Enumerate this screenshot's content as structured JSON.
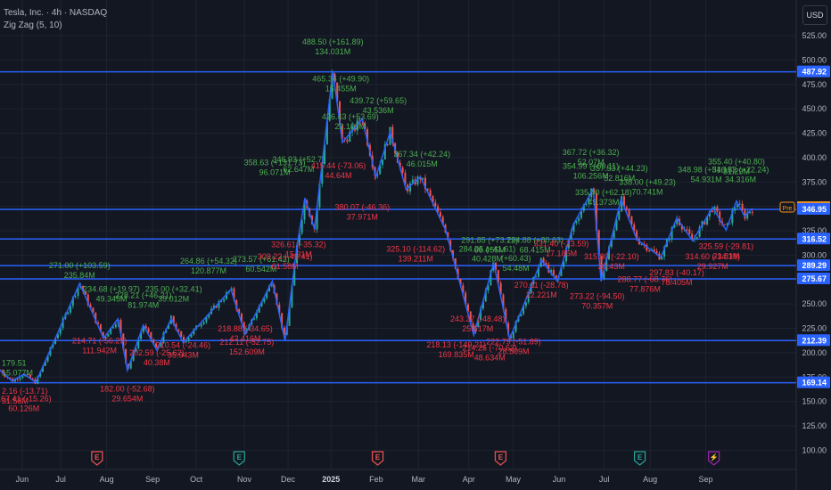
{
  "header": {
    "symbol_line": "Tesla, Inc. · 4h · NASDAQ",
    "indicator_line": "Zig Zag (5, 10)",
    "currency_button": "USD"
  },
  "colors": {
    "background": "#131722",
    "grid": "#1f2330",
    "up": "#26a69a",
    "down": "#ef5350",
    "hline": "#2962ff",
    "zigzag": "#2962ff",
    "label_up": "#4caf50",
    "label_down": "#f23645",
    "axis_text": "#b2b5be",
    "price_tag": "#f7931a"
  },
  "chart_data": {
    "type": "candlestick",
    "title": "Tesla, Inc. · 4h · NASDAQ",
    "ylim": [
      92,
      560
    ],
    "y_ticks": [
      100,
      125,
      150,
      175,
      200,
      225,
      250,
      275,
      300,
      325,
      350,
      375,
      400,
      425,
      450,
      475,
      500,
      525
    ],
    "y_tick_labels": [
      "100.00",
      "125.00",
      "150.00",
      "175.00",
      "200.00",
      "225.00",
      "250.00",
      "275.00",
      "300.00",
      "325.00",
      "350.00",
      "375.00",
      "400.00",
      "425.00",
      "450.00",
      "475.00",
      "500.00",
      "525.00"
    ],
    "x_labels": [
      {
        "label": "Jun",
        "t": 0.03
      },
      {
        "label": "Jul",
        "t": 0.082
      },
      {
        "label": "Aug",
        "t": 0.144
      },
      {
        "label": "Sep",
        "t": 0.206
      },
      {
        "label": "Oct",
        "t": 0.265
      },
      {
        "label": "Nov",
        "t": 0.33
      },
      {
        "label": "Dec",
        "t": 0.389
      },
      {
        "label": "2025",
        "t": 0.447
      },
      {
        "label": "Feb",
        "t": 0.508
      },
      {
        "label": "Mar",
        "t": 0.565
      },
      {
        "label": "Apr",
        "t": 0.633
      },
      {
        "label": "May",
        "t": 0.693
      },
      {
        "label": "Jun",
        "t": 0.755
      },
      {
        "label": "Jul",
        "t": 0.816
      },
      {
        "label": "Aug",
        "t": 0.878
      },
      {
        "label": "Sep",
        "t": 0.953
      }
    ],
    "earnings_markers": [
      {
        "t": 0.125,
        "letter": "E",
        "color": "#ef5350"
      },
      {
        "t": 0.317,
        "letter": "E",
        "color": "#26a69a"
      },
      {
        "t": 0.504,
        "letter": "E",
        "color": "#ef5350"
      },
      {
        "t": 0.67,
        "letter": "E",
        "color": "#ef5350"
      },
      {
        "t": 0.858,
        "letter": "E",
        "color": "#26a69a"
      },
      {
        "t": 0.958,
        "letter": "⚡",
        "color": "#9c27b0"
      }
    ],
    "horizontal_levels": [
      487.92,
      346.95,
      316.52,
      289.29,
      275.67,
      212.39,
      169.14
    ],
    "axis_tags": [
      {
        "value": 487.92,
        "label": "487.92",
        "color": "#2962ff"
      },
      {
        "value": 348.76,
        "label": "348.76",
        "color": "#f7931a"
      },
      {
        "value": 347.01,
        "label": "347.01",
        "color": "#2962ff"
      },
      {
        "value": 346.95,
        "label": "346.95",
        "color": "#2962ff"
      },
      {
        "value": 316.52,
        "label": "316.52",
        "color": "#2962ff"
      },
      {
        "value": 289.29,
        "label": "289.29",
        "color": "#2962ff"
      },
      {
        "value": 275.67,
        "label": "275.67",
        "color": "#2962ff"
      },
      {
        "value": 212.39,
        "label": "212.39",
        "color": "#2962ff"
      },
      {
        "value": 169.14,
        "label": "169.14",
        "color": "#2962ff"
      }
    ],
    "price_tag_label": "Pre",
    "zigzag_points": [
      {
        "t": 0.0,
        "v": 182.0
      },
      {
        "t": 0.015,
        "v": 171.0
      },
      {
        "t": 0.03,
        "v": 178.0
      },
      {
        "t": 0.045,
        "v": 169.5
      },
      {
        "t": 0.1,
        "v": 271.0
      },
      {
        "t": 0.13,
        "v": 214.7
      },
      {
        "t": 0.148,
        "v": 234.7
      },
      {
        "t": 0.16,
        "v": 182.0
      },
      {
        "t": 0.18,
        "v": 228.2
      },
      {
        "t": 0.197,
        "v": 202.6
      },
      {
        "t": 0.215,
        "v": 235.0
      },
      {
        "t": 0.23,
        "v": 210.5
      },
      {
        "t": 0.29,
        "v": 264.9
      },
      {
        "t": 0.308,
        "v": 218.8
      },
      {
        "t": 0.342,
        "v": 273.5
      },
      {
        "t": 0.358,
        "v": 212.1
      },
      {
        "t": 0.373,
        "v": 309.2
      },
      {
        "t": 0.383,
        "v": 358.6
      },
      {
        "t": 0.395,
        "v": 326.6
      },
      {
        "t": 0.418,
        "v": 488.5
      },
      {
        "t": 0.43,
        "v": 415.4
      },
      {
        "t": 0.455,
        "v": 439.7
      },
      {
        "t": 0.472,
        "v": 380.1
      },
      {
        "t": 0.49,
        "v": 426.4
      },
      {
        "t": 0.51,
        "v": 367.3
      },
      {
        "t": 0.528,
        "v": 380.1
      },
      {
        "t": 0.56,
        "v": 325.1
      },
      {
        "t": 0.595,
        "v": 218.1
      },
      {
        "t": 0.62,
        "v": 291.9
      },
      {
        "t": 0.64,
        "v": 214.3
      },
      {
        "t": 0.655,
        "v": 243.4
      },
      {
        "t": 0.68,
        "v": 294.9
      },
      {
        "t": 0.7,
        "v": 273.2
      },
      {
        "t": 0.72,
        "v": 331.4
      },
      {
        "t": 0.745,
        "v": 367.7
      },
      {
        "t": 0.755,
        "v": 273.2
      },
      {
        "t": 0.78,
        "v": 357.5
      },
      {
        "t": 0.8,
        "v": 316.0
      },
      {
        "t": 0.83,
        "v": 297.8
      },
      {
        "t": 0.85,
        "v": 338.0
      },
      {
        "t": 0.87,
        "v": 314.6
      },
      {
        "t": 0.895,
        "v": 348.9
      },
      {
        "t": 0.912,
        "v": 325.6
      },
      {
        "t": 0.925,
        "v": 355.4
      },
      {
        "t": 0.935,
        "v": 340.0
      },
      {
        "t": 0.945,
        "v": 348.0
      }
    ],
    "zigzag_labels": [
      {
        "t": 0.0,
        "v": 186.5,
        "lines": [
          "179.51",
          "15.077M"
        ],
        "dir": "up"
      },
      {
        "t": 0.0,
        "v": 158.0,
        "lines": [
          "2.16 (-13.71)",
          "31.58M"
        ],
        "dir": "down"
      },
      {
        "t": 0.03,
        "v": 150.0,
        "lines": [
          "167.41 (-15.26)",
          "60.126M"
        ],
        "dir": "down"
      },
      {
        "t": 0.1,
        "v": 286.5,
        "lines": [
          "271.00 (+103.59)",
          "235.84M"
        ],
        "dir": "up"
      },
      {
        "t": 0.14,
        "v": 262.5,
        "lines": [
          "234.68 (+19.97)",
          "49.345M"
        ],
        "dir": "up"
      },
      {
        "t": 0.125,
        "v": 209.5,
        "lines": [
          "214.71 (-56.29)",
          "111.942M"
        ],
        "dir": "down"
      },
      {
        "t": 0.16,
        "v": 160.0,
        "lines": [
          "182.00 (-52.68)",
          "29.654M"
        ],
        "dir": "down"
      },
      {
        "t": 0.18,
        "v": 256.0,
        "lines": [
          "228.21 (+46.21)",
          "81.974M"
        ],
        "dir": "up"
      },
      {
        "t": 0.218,
        "v": 262.5,
        "lines": [
          "235.00 (+32.41)",
          "39.012M"
        ],
        "dir": "up"
      },
      {
        "t": 0.197,
        "v": 197.0,
        "lines": [
          "202.59 (-25.62)",
          "40.38M"
        ],
        "dir": "down"
      },
      {
        "t": 0.23,
        "v": 205.0,
        "lines": [
          "210.54 (-24.46)",
          "35.943M"
        ],
        "dir": "down"
      },
      {
        "t": 0.262,
        "v": 291.0,
        "lines": [
          "264.86 (+54.32)",
          "120.877M"
        ],
        "dir": "up"
      },
      {
        "t": 0.328,
        "v": 293.0,
        "lines": [
          "273.57 (+61.42)",
          "60.542M"
        ],
        "dir": "up"
      },
      {
        "t": 0.308,
        "v": 222.0,
        "lines": [
          "218.88 (-34.65)",
          "42.416M"
        ],
        "dir": "down"
      },
      {
        "t": 0.31,
        "v": 208.0,
        "lines": [
          "212.11 (-52.75)",
          "152.609M"
        ],
        "dir": "down"
      },
      {
        "t": 0.358,
        "v": 296.0,
        "lines": [
          "309.22 (-49.41)",
          "61.58M"
        ],
        "dir": "down"
      },
      {
        "t": 0.375,
        "v": 308.0,
        "lines": [
          "326.61 (-35.32)",
          "15.31M"
        ],
        "dir": "down"
      },
      {
        "t": 0.345,
        "v": 392.0,
        "lines": [
          "358.63 (+131.73)",
          "96.071M"
        ],
        "dir": "up"
      },
      {
        "t": 0.375,
        "v": 395.5,
        "lines": [
          "346.93 (+52.7)",
          "62.647M"
        ],
        "dir": "up"
      },
      {
        "t": 0.418,
        "v": 516.0,
        "lines": [
          "488.50 (+161.89)",
          "134.031M"
        ],
        "dir": "up"
      },
      {
        "t": 0.428,
        "v": 478.0,
        "lines": [
          "465.34 (+49.90)",
          "15.455M"
        ],
        "dir": "up"
      },
      {
        "t": 0.44,
        "v": 439.0,
        "lines": [
          "426.43 (+53.69)",
          "22.103M"
        ],
        "dir": "up"
      },
      {
        "t": 0.475,
        "v": 455.5,
        "lines": [
          "439.72 (+59.65)",
          "43.536M"
        ],
        "dir": "up"
      },
      {
        "t": 0.425,
        "v": 389.0,
        "lines": [
          "415.44 (-73.06)",
          "44.64M"
        ],
        "dir": "down"
      },
      {
        "t": 0.455,
        "v": 346.5,
        "lines": [
          "380.07 (-46.36)",
          "37.971M"
        ],
        "dir": "down"
      },
      {
        "t": 0.53,
        "v": 401.0,
        "lines": [
          "367.34 (+42.24)",
          "46.015M"
        ],
        "dir": "up"
      },
      {
        "t": 0.522,
        "v": 303.5,
        "lines": [
          "325.10 (-114.62)",
          "139.211M"
        ],
        "dir": "down"
      },
      {
        "t": 0.615,
        "v": 312.5,
        "lines": [
          "291.85 (+73.72)",
          "66.455M"
        ],
        "dir": "up"
      },
      {
        "t": 0.612,
        "v": 303.5,
        "lines": [
          "284.95 (+41.61)",
          "40.428M"
        ],
        "dir": "up"
      },
      {
        "t": 0.672,
        "v": 312.5,
        "lines": [
          "294.88 (+80.63)",
          "68.415M"
        ],
        "dir": "up"
      },
      {
        "t": 0.648,
        "v": 294.0,
        "lines": [
          "(+60.43)",
          "54.48M"
        ],
        "dir": "up"
      },
      {
        "t": 0.6,
        "v": 232.0,
        "lines": [
          "243.37 (-48.48)",
          "25.617M"
        ],
        "dir": "down"
      },
      {
        "t": 0.573,
        "v": 205.5,
        "lines": [
          "218.13 (-149.21)",
          "169.835M"
        ],
        "dir": "down"
      },
      {
        "t": 0.615,
        "v": 202.0,
        "lines": [
          "214.25 (-70.63)",
          "48.634M"
        ],
        "dir": "down"
      },
      {
        "t": 0.645,
        "v": 208.5,
        "lines": [
          "222.79 (-51.89)",
          "28.509M"
        ],
        "dir": "down"
      },
      {
        "t": 0.68,
        "v": 266.5,
        "lines": [
          "270.11 (-28.78)",
          "22.221M"
        ],
        "dir": "down"
      },
      {
        "t": 0.742,
        "v": 388.5,
        "lines": [
          "354.99 (+60.11)",
          "106.256M"
        ],
        "dir": "up"
      },
      {
        "t": 0.742,
        "v": 402.5,
        "lines": [
          "367.72 (+36.32)",
          "52.07M"
        ],
        "dir": "up"
      },
      {
        "t": 0.778,
        "v": 386.0,
        "lines": [
          "357.53 (+44.23)",
          "52.816M"
        ],
        "dir": "up"
      },
      {
        "t": 0.758,
        "v": 361.5,
        "lines": [
          "335.40 (+62.18)",
          "49.373M"
        ],
        "dir": "up"
      },
      {
        "t": 0.705,
        "v": 309.0,
        "lines": [
          "331.40 (-23.59)",
          "17.185M"
        ],
        "dir": "down"
      },
      {
        "t": 0.768,
        "v": 296.0,
        "lines": [
          "315.80 (-22.10)",
          "20.43M"
        ],
        "dir": "down"
      },
      {
        "t": 0.75,
        "v": 255.0,
        "lines": [
          "273.22 (-94.50)",
          "70.357M"
        ],
        "dir": "down"
      },
      {
        "t": 0.81,
        "v": 272.5,
        "lines": [
          "288.77 (-68.76)",
          "77.876M"
        ],
        "dir": "down"
      },
      {
        "t": 0.85,
        "v": 279.5,
        "lines": [
          "297.83 (-40.17)",
          "78.405M"
        ],
        "dir": "down"
      },
      {
        "t": 0.813,
        "v": 372.0,
        "lines": [
          "338.00 (+49.23)",
          "70.741M"
        ],
        "dir": "up"
      },
      {
        "t": 0.887,
        "v": 385.0,
        "lines": [
          "348.98 (+51.15)",
          "54.931M"
        ],
        "dir": "up"
      },
      {
        "t": 0.925,
        "v": 393.0,
        "lines": [
          "355.40 (+40.80)",
          "31.29M"
        ],
        "dir": "up"
      },
      {
        "t": 0.93,
        "v": 385.0,
        "lines": [
          "346.83 (+22.24)",
          "34.316M"
        ],
        "dir": "up"
      },
      {
        "t": 0.895,
        "v": 296.0,
        "lines": [
          "314.60 (-34.38)",
          "29.927M"
        ],
        "dir": "down"
      },
      {
        "t": 0.912,
        "v": 306.5,
        "lines": [
          "325.59 (-29.81)",
          "21.81M"
        ],
        "dir": "down"
      }
    ]
  }
}
